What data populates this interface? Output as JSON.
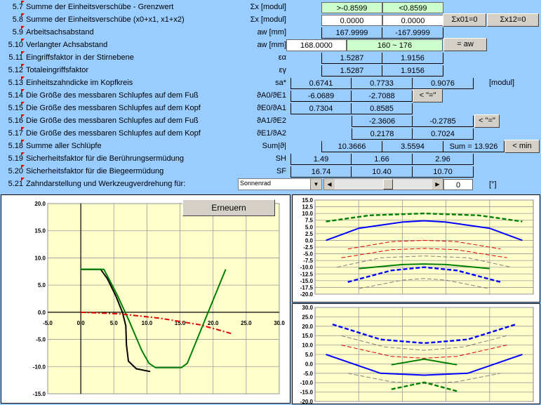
{
  "rows": [
    {
      "num": "5.7",
      "label": "Summe der Einheitsverschübe - Grenzwert",
      "sym": "Σx [modul]"
    },
    {
      "num": "5.8",
      "label": "Summe der Einheitsverschübe (x0+x1, x1+x2)",
      "sym": "Σx [modul]"
    },
    {
      "num": "5.9",
      "label": "Arbeitsachsabstand",
      "sym": "aw [mm]"
    },
    {
      "num": "5.10",
      "label": "Verlangter Achsabstand",
      "sym": "aw [mm]"
    },
    {
      "num": "5.11",
      "label": "Eingriffsfaktor in der Stirnebene",
      "sym": "εα"
    },
    {
      "num": "5.12",
      "label": "Totaleingriffsfaktor",
      "sym": "εγ"
    },
    {
      "num": "5.13",
      "label": "Einheitszahndicke im Kopfkreis",
      "sym": "sa*"
    },
    {
      "num": "5.14",
      "label": "Die Größe des messbaren Schlupfes auf dem Fuß",
      "sym": "ϑA0/ϑE1"
    },
    {
      "num": "5.15",
      "label": "Die Größe des messbaren Schlupfes auf dem Kopf",
      "sym": "ϑE0/ϑA1"
    },
    {
      "num": "5.16",
      "label": "Die Größe des messbaren Schlupfes auf dem Fuß",
      "sym": "ϑA1/ϑE2"
    },
    {
      "num": "5.17",
      "label": "Die Größe des messbaren Schlupfes auf dem Kopf",
      "sym": "ϑE1/ϑA2"
    },
    {
      "num": "5.18",
      "label": "Summe aller Schlüpfe",
      "sym": "Sum|ϑ|"
    },
    {
      "num": "5.19",
      "label": "Sicherheitsfaktor für die Berührungsermüdung",
      "sym": "SH"
    },
    {
      "num": "5.20",
      "label": "Sicherheitsfaktor für die Biegeermüdung",
      "sym": "SF"
    },
    {
      "num": "5.21",
      "label": "Zahndarstellung und Werkzeugverdrehung für:",
      "sym": ""
    }
  ],
  "values": {
    "r57_a": ">-0.8599",
    "r57_b": "<0.8599",
    "r58_a": "0.0000",
    "r58_b": "0.0000",
    "r59_a": "167.9999",
    "r59_b": "-167.9999",
    "r510_input": "168.0000",
    "r510_range": "160 ~ 176",
    "r511_a": "1.5287",
    "r511_b": "1.9156",
    "r512_a": "1.5287",
    "r512_b": "1.9156",
    "r513_a": "0.6741",
    "r513_b": "0.7733",
    "r513_c": "0.9076",
    "r513_unit": "[modul]",
    "r514_a": "-6.0689",
    "r514_b": "-2.7088",
    "r515_a": "0.7304",
    "r515_b": "0.8585",
    "r516_b": "-2.3606",
    "r516_c": "-0.2785",
    "r517_b": "0.2178",
    "r517_c": "0.7024",
    "r518_a": "10.3666",
    "r518_b": "3.5594",
    "r518_sum": "Sum = 13.926",
    "r519_a": "1.49",
    "r519_b": "1.66",
    "r519_c": "2.96",
    "r520_a": "16.74",
    "r520_b": "10.40",
    "r520_c": "10.70",
    "select_value": "Sonnenrad",
    "angle_value": "0",
    "angle_unit": "[°]"
  },
  "buttons": {
    "sx01": "Σx01=0",
    "sx12": "Σx12=0",
    "eq_aw": "= aw",
    "eq1": "< \"=\"",
    "eq2": "< \"=\"",
    "min": "< min",
    "erneuern": "Erneuern"
  },
  "chart_data": [
    {
      "type": "line",
      "xlim": [
        -5,
        30
      ],
      "ylim": [
        -15,
        20
      ],
      "x_ticks": [
        "-5.0",
        "0.0",
        "5.0",
        "10.0",
        "15.0",
        "20.0",
        "25.0",
        "30.0"
      ],
      "y_ticks": [
        "20.0",
        "15.0",
        "10.0",
        "5.0",
        "0.0",
        "-5.0",
        "-10.0",
        "-15.0"
      ],
      "series": [
        {
          "color": "#000000",
          "style": "solid",
          "points": [
            [
              0,
              7.9
            ],
            [
              3,
              7.9
            ],
            [
              4,
              6.2
            ],
            [
              5.3,
              3.0
            ],
            [
              6.3,
              0
            ],
            [
              6.8,
              -2.5
            ],
            [
              6.9,
              -6.0
            ],
            [
              7.2,
              -9.0
            ],
            [
              8.4,
              -10.4
            ],
            [
              10.5,
              -10.9
            ]
          ]
        },
        {
          "color": "#008000",
          "style": "solid",
          "points": [
            [
              0,
              7.9
            ],
            [
              3.5,
              7.9
            ],
            [
              5.5,
              3.2
            ],
            [
              7.3,
              -1.6
            ],
            [
              9.2,
              -7.0
            ],
            [
              10.3,
              -9.4
            ],
            [
              11.3,
              -10.2
            ],
            [
              15.2,
              -10.2
            ],
            [
              16.1,
              -9.4
            ],
            [
              21.9,
              7.9
            ]
          ]
        },
        {
          "color": "#e00000",
          "style": "dashdot",
          "points": [
            [
              0,
              0
            ],
            [
              6,
              -0.3
            ],
            [
              12,
              -1.1
            ],
            [
              18,
              -2.3
            ],
            [
              23,
              -4.0
            ]
          ]
        }
      ]
    },
    {
      "type": "line",
      "xlim": [
        0,
        1
      ],
      "ylim": [
        -20,
        15
      ],
      "y_ticks": [
        "15.0",
        "12.5",
        "10.0",
        "7.5",
        "5.0",
        "2.5",
        "0.0",
        "-2.5",
        "-5.0",
        "-7.5",
        "-10.0",
        "-12.5",
        "-15.0",
        "-17.5",
        "-20.0"
      ],
      "series": [
        {
          "color": "#008000",
          "style": "dashed",
          "points": [
            [
              0.05,
              7.0
            ],
            [
              0.25,
              9.3
            ],
            [
              0.5,
              10.0
            ],
            [
              0.75,
              9.3
            ],
            [
              0.95,
              7.0
            ]
          ]
        },
        {
          "color": "#0000ff",
          "style": "solid",
          "points": [
            [
              0.05,
              0.0
            ],
            [
              0.2,
              4.5
            ],
            [
              0.4,
              6.8
            ],
            [
              0.5,
              7.3
            ],
            [
              0.6,
              6.8
            ],
            [
              0.8,
              4.5
            ],
            [
              0.95,
              0.0
            ]
          ]
        },
        {
          "color": "#e00000",
          "style": "dashed",
          "points": [
            [
              0.15,
              -3.2
            ],
            [
              0.35,
              -0.5
            ],
            [
              0.5,
              0.0
            ],
            [
              0.65,
              -0.5
            ],
            [
              0.85,
              -3.2
            ]
          ]
        },
        {
          "color": "#e00000",
          "style": "dashed",
          "points": [
            [
              0.12,
              -6.5
            ],
            [
              0.35,
              -3.5
            ],
            [
              0.5,
              -3.0
            ],
            [
              0.65,
              -3.5
            ],
            [
              0.88,
              -6.5
            ]
          ]
        },
        {
          "color": "#808080",
          "style": "dashed",
          "points": [
            [
              0.1,
              -10.0
            ],
            [
              0.3,
              -6.5
            ],
            [
              0.5,
              -5.8
            ],
            [
              0.7,
              -6.5
            ],
            [
              0.9,
              -10.0
            ]
          ]
        },
        {
          "color": "#008000",
          "style": "solid",
          "points": [
            [
              0.2,
              -10.5
            ],
            [
              0.4,
              -9.0
            ],
            [
              0.5,
              -8.8
            ],
            [
              0.6,
              -9.0
            ],
            [
              0.8,
              -10.5
            ]
          ]
        },
        {
          "color": "#0000ff",
          "style": "dashed",
          "points": [
            [
              0.15,
              -15.5
            ],
            [
              0.35,
              -11.2
            ],
            [
              0.5,
              -10.0
            ],
            [
              0.65,
              -11.2
            ],
            [
              0.85,
              -15.5
            ]
          ]
        },
        {
          "color": "#808080",
          "style": "dashed",
          "points": [
            [
              0.2,
              -18.0
            ],
            [
              0.4,
              -14.8
            ],
            [
              0.5,
              -14.2
            ],
            [
              0.6,
              -14.8
            ],
            [
              0.8,
              -18.0
            ]
          ]
        }
      ]
    },
    {
      "type": "line",
      "xlim": [
        0,
        1
      ],
      "ylim": [
        -20,
        30
      ],
      "y_ticks": [
        "30.0",
        "25.0",
        "20.0",
        "15.0",
        "10.0",
        "5.0",
        "0.0",
        "-5.0",
        "-10.0",
        "-15.0",
        "-20.0"
      ],
      "series": [
        {
          "color": "#0000ff",
          "style": "dashed",
          "points": [
            [
              0.08,
              21
            ],
            [
              0.3,
              13
            ],
            [
              0.5,
              11
            ],
            [
              0.7,
              13
            ],
            [
              0.92,
              21
            ]
          ]
        },
        {
          "color": "#808080",
          "style": "dashed",
          "points": [
            [
              0.12,
              15
            ],
            [
              0.32,
              9
            ],
            [
              0.5,
              7.2
            ],
            [
              0.68,
              9
            ],
            [
              0.88,
              15
            ]
          ]
        },
        {
          "color": "#e00000",
          "style": "dashed",
          "points": [
            [
              0.12,
              10
            ],
            [
              0.35,
              4
            ],
            [
              0.5,
              3
            ],
            [
              0.65,
              4
            ],
            [
              0.88,
              10
            ]
          ]
        },
        {
          "color": "#008000",
          "style": "solid",
          "points": [
            [
              0.35,
              -0.5
            ],
            [
              0.5,
              2.5
            ],
            [
              0.65,
              -0.5
            ]
          ]
        },
        {
          "color": "#0000ff",
          "style": "solid",
          "points": [
            [
              0.05,
              5
            ],
            [
              0.3,
              -5
            ],
            [
              0.5,
              -6
            ],
            [
              0.7,
              -5
            ],
            [
              0.95,
              5
            ]
          ]
        },
        {
          "color": "#808080",
          "style": "dashed",
          "points": [
            [
              0.15,
              -5
            ],
            [
              0.35,
              -9.5
            ],
            [
              0.5,
              -10.5
            ],
            [
              0.65,
              -9.5
            ],
            [
              0.85,
              -5
            ]
          ]
        },
        {
          "color": "#008000",
          "style": "dashed",
          "points": [
            [
              0.35,
              -13.5
            ],
            [
              0.5,
              -9.8
            ],
            [
              0.65,
              -14.5
            ]
          ]
        }
      ]
    }
  ]
}
